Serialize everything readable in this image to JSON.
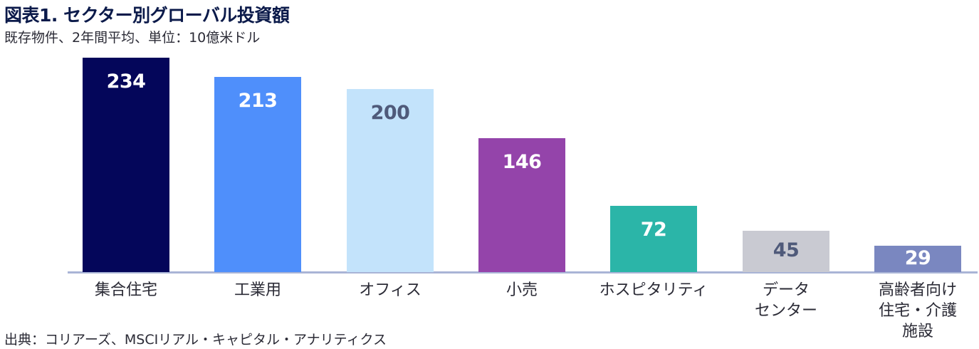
{
  "header": {
    "title": "図表1. セクター別グローバル投資額",
    "subtitle": "既存物件、2年間平均、単位：10億米ドル"
  },
  "footer": {
    "source": "出典：コリアーズ、MSCIリアル・キャピタル・アナリティクス"
  },
  "chart_data": {
    "type": "bar",
    "title": "図表1. セクター別グローバル投資額",
    "subtitle": "既存物件、2年間平均、単位：10億米ドル",
    "xlabel": "",
    "ylabel": "10億米ドル",
    "categories": [
      "集合住宅",
      "工業用",
      "オフィス",
      "小売",
      "ホスピタリティ",
      "データセンター",
      "高齢者向け住宅・介護施設"
    ],
    "values": [
      234,
      213,
      200,
      146,
      72,
      45,
      29
    ],
    "colors": [
      "#04065a",
      "#4f8ffb",
      "#c3e3fb",
      "#9444aa",
      "#2bb5a8",
      "#c9cad2",
      "#7a87c0"
    ],
    "value_label_colors": [
      "#ffffff",
      "#ffffff",
      "#4f5a7a",
      "#ffffff",
      "#ffffff",
      "#4f5a7a",
      "#ffffff"
    ],
    "ylim": [
      0,
      234
    ],
    "grid": false,
    "legend": "none",
    "source": "出典：コリアーズ、MSCIリアル・キャピタル・アナリティクス"
  },
  "bars": [
    {
      "label": "集合住宅",
      "display": "集合住宅",
      "value": "234"
    },
    {
      "label": "工業用",
      "display": "工業用",
      "value": "213"
    },
    {
      "label": "オフィス",
      "display": "オフィス",
      "value": "200"
    },
    {
      "label": "小売",
      "display": "小売",
      "value": "146"
    },
    {
      "label": "ホスピタリティ",
      "display": "ホスピタリティ",
      "value": "72"
    },
    {
      "label": "データセンター",
      "display": "データ\nセンター",
      "value": "45"
    },
    {
      "label": "高齢者向け住宅・介護施設",
      "display": "高齢者向け\n住宅・介護\n施設",
      "value": "29"
    }
  ]
}
